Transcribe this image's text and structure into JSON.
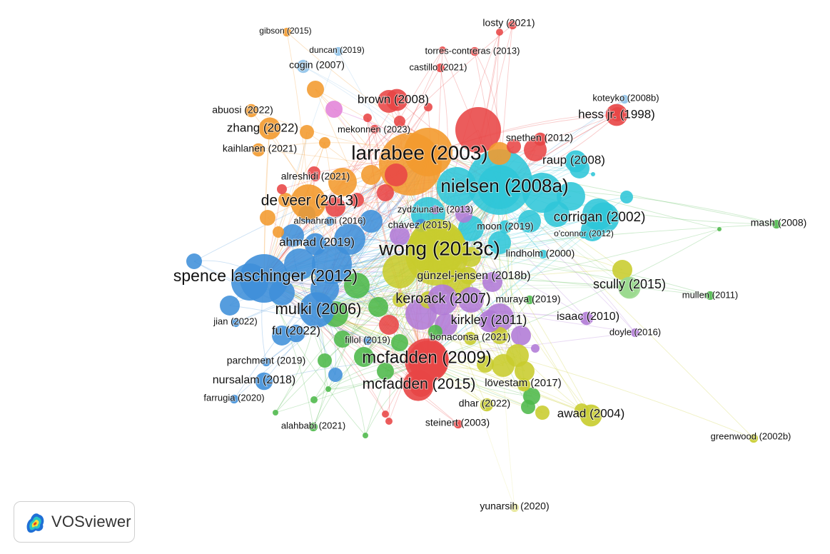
{
  "app": {
    "name": "VOSviewer",
    "logo_icon": "density-map-icon"
  },
  "colors": {
    "red": "#e84545",
    "orange": "#f39a2e",
    "cyan": "#2fc6d8",
    "blue": "#3f8fd9",
    "green": "#4db84a",
    "yellow": "#c8cc2c",
    "purple": "#b07ad6",
    "pink": "#e383d8",
    "lightblue": "#8fc3ea",
    "lightgreen": "#9bd98f",
    "paleyellow": "#e6e690"
  },
  "items": [
    {
      "label": "losty (2021)",
      "cluster": "red",
      "w": 1
    },
    {
      "label": "gibson (2015)",
      "cluster": "orange",
      "w": 1
    },
    {
      "label": "duncan (2019)",
      "cluster": "lightblue",
      "w": 1
    },
    {
      "label": "torres-contreras (2013)",
      "cluster": "red",
      "w": 1
    },
    {
      "label": "cogin (2007)",
      "cluster": "lightblue",
      "w": 2
    },
    {
      "label": "castillo (2021)",
      "cluster": "red",
      "w": 1
    },
    {
      "label": "koteyko (2008b)",
      "cluster": "lightblue",
      "w": 1
    },
    {
      "label": "brown (2008)",
      "cluster": "red",
      "w": 4
    },
    {
      "label": "abuosi (2022)",
      "cluster": "orange",
      "w": 2
    },
    {
      "label": "hess jr. (1998)",
      "cluster": "red",
      "w": 4
    },
    {
      "label": "zhang (2022)",
      "cluster": "orange",
      "w": 4
    },
    {
      "label": "mekonnen (2023)",
      "cluster": "red",
      "w": 1
    },
    {
      "label": "snethen (2012)",
      "cluster": "red",
      "w": 2
    },
    {
      "label": "kaihlanen (2021)",
      "cluster": "orange",
      "w": 2
    },
    {
      "label": "larrabee (2003)",
      "cluster": "orange",
      "w": 10
    },
    {
      "label": "raup (2008)",
      "cluster": "cyan",
      "w": 4
    },
    {
      "label": "alreshidi (2021)",
      "cluster": "red",
      "w": 1
    },
    {
      "label": "nielsen (2008a)",
      "cluster": "cyan",
      "w": 9
    },
    {
      "label": "de veer (2013)",
      "cluster": "orange",
      "w": 7
    },
    {
      "label": "zydziunaite (2013)",
      "cluster": "purple",
      "w": 1
    },
    {
      "label": "corrigan (2002)",
      "cluster": "cyan",
      "w": 6
    },
    {
      "label": "alshahrani (2016)",
      "cluster": "blue",
      "w": 1
    },
    {
      "label": "mash (2008)",
      "cluster": "green",
      "w": 1
    },
    {
      "label": "chávez (2015)",
      "cluster": "blue",
      "w": 2
    },
    {
      "label": "moon (2019)",
      "cluster": "cyan",
      "w": 2
    },
    {
      "label": "o'connor (2012)",
      "cluster": "cyan",
      "w": 1
    },
    {
      "label": "ahmad (2019)",
      "cluster": "blue",
      "w": 4
    },
    {
      "label": "wong (2013c)",
      "cluster": "yellow",
      "w": 12
    },
    {
      "label": "lindholm (2000)",
      "cluster": "cyan",
      "w": 1
    },
    {
      "label": "spence laschinger (2012)",
      "cluster": "blue",
      "w": 10
    },
    {
      "label": "günzel-jensen (2018b)",
      "cluster": "yellow",
      "w": 3
    },
    {
      "label": "scully (2015)",
      "cluster": "lightgreen",
      "w": 4
    },
    {
      "label": "mullen (2011)",
      "cluster": "green",
      "w": 1
    },
    {
      "label": "keroack (2007)",
      "cluster": "purple",
      "w": 6
    },
    {
      "label": "muraya (2019)",
      "cluster": "green",
      "w": 1
    },
    {
      "label": "mulki (2006)",
      "cluster": "blue",
      "w": 7
    },
    {
      "label": "isaac (2010)",
      "cluster": "purple",
      "w": 2
    },
    {
      "label": "kirkley (2011)",
      "cluster": "purple",
      "w": 4
    },
    {
      "label": "jian (2022)",
      "cluster": "blue",
      "w": 1
    },
    {
      "label": "doyle (2016)",
      "cluster": "purple",
      "w": 1
    },
    {
      "label": "fu (2022)",
      "cluster": "blue",
      "w": 3
    },
    {
      "label": "bonaconsa (2021)",
      "cluster": "yellow",
      "w": 2
    },
    {
      "label": "fillol (2019)",
      "cluster": "blue",
      "w": 1
    },
    {
      "label": "mcfadden (2009)",
      "cluster": "red",
      "w": 9
    },
    {
      "label": "parchment (2019)",
      "cluster": "blue",
      "w": 1
    },
    {
      "label": "nursalam (2018)",
      "cluster": "blue",
      "w": 3
    },
    {
      "label": "mcfadden (2015)",
      "cluster": "red",
      "w": 6
    },
    {
      "label": "lövestam (2017)",
      "cluster": "yellow",
      "w": 2
    },
    {
      "label": "farrugia (2020)",
      "cluster": "blue",
      "w": 1
    },
    {
      "label": "dhar (2022)",
      "cluster": "yellow",
      "w": 2
    },
    {
      "label": "awad (2004)",
      "cluster": "yellow",
      "w": 4
    },
    {
      "label": "alahbabi (2021)",
      "cluster": "green",
      "w": 1
    },
    {
      "label": "steinert (2003)",
      "cluster": "red",
      "w": 1
    },
    {
      "label": "greenwood (2002b)",
      "cluster": "yellow",
      "w": 1
    },
    {
      "label": "yunarsih (2020)",
      "cluster": "paleyellow",
      "w": 1
    }
  ]
}
